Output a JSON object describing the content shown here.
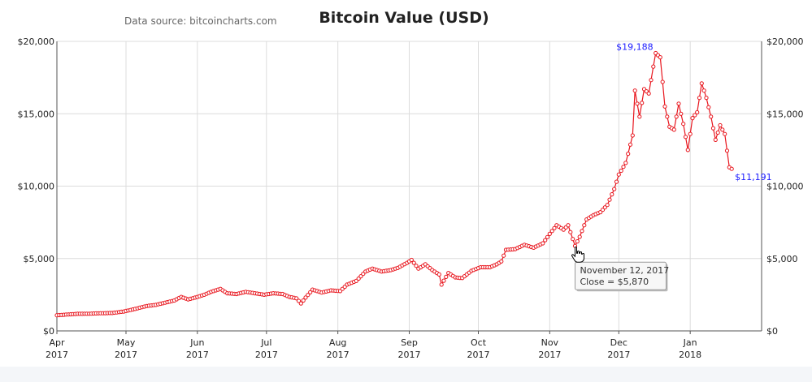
{
  "chart_data": {
    "type": "line",
    "title": "Bitcoin Value (USD)",
    "source_note": "Data source: bitcoincharts.com",
    "xlabel": "",
    "ylabel": "",
    "ylim": [
      0,
      20000
    ],
    "y_ticks": [
      0,
      5000,
      10000,
      15000,
      20000
    ],
    "y_tick_labels": [
      "$0",
      "$5,000",
      "$10,000",
      "$15,000",
      "$20,000"
    ],
    "x_ticks": [
      {
        "date": "2017-04-01",
        "month": "Apr",
        "year": "2017"
      },
      {
        "date": "2017-05-01",
        "month": "May",
        "year": "2017"
      },
      {
        "date": "2017-06-01",
        "month": "Jun",
        "year": "2017"
      },
      {
        "date": "2017-07-01",
        "month": "Jul",
        "year": "2017"
      },
      {
        "date": "2017-08-01",
        "month": "Aug",
        "year": "2017"
      },
      {
        "date": "2017-09-01",
        "month": "Sep",
        "year": "2017"
      },
      {
        "date": "2017-10-01",
        "month": "Oct",
        "year": "2017"
      },
      {
        "date": "2017-11-01",
        "month": "Nov",
        "year": "2017"
      },
      {
        "date": "2017-12-01",
        "month": "Dec",
        "year": "2017"
      },
      {
        "date": "2018-01-01",
        "month": "Jan",
        "year": "2018"
      }
    ],
    "grid": true,
    "line_color": "#e8141c",
    "series": [
      {
        "points": [
          [
            "2017-04-01",
            1080
          ],
          [
            "2017-04-05",
            1130
          ],
          [
            "2017-04-10",
            1180
          ],
          [
            "2017-04-15",
            1190
          ],
          [
            "2017-04-20",
            1220
          ],
          [
            "2017-04-25",
            1240
          ],
          [
            "2017-04-30",
            1340
          ],
          [
            "2017-05-05",
            1520
          ],
          [
            "2017-05-10",
            1720
          ],
          [
            "2017-05-14",
            1800
          ],
          [
            "2017-05-18",
            1950
          ],
          [
            "2017-05-22",
            2100
          ],
          [
            "2017-05-25",
            2350
          ],
          [
            "2017-05-28",
            2180
          ],
          [
            "2017-05-31",
            2300
          ],
          [
            "2017-06-04",
            2500
          ],
          [
            "2017-06-07",
            2700
          ],
          [
            "2017-06-11",
            2900
          ],
          [
            "2017-06-14",
            2600
          ],
          [
            "2017-06-18",
            2550
          ],
          [
            "2017-06-22",
            2700
          ],
          [
            "2017-06-26",
            2600
          ],
          [
            "2017-06-30",
            2500
          ],
          [
            "2017-07-04",
            2600
          ],
          [
            "2017-07-08",
            2550
          ],
          [
            "2017-07-11",
            2350
          ],
          [
            "2017-07-14",
            2250
          ],
          [
            "2017-07-16",
            1900
          ],
          [
            "2017-07-18",
            2300
          ],
          [
            "2017-07-21",
            2850
          ],
          [
            "2017-07-25",
            2650
          ],
          [
            "2017-07-29",
            2800
          ],
          [
            "2017-08-02",
            2750
          ],
          [
            "2017-08-05",
            3200
          ],
          [
            "2017-08-09",
            3450
          ],
          [
            "2017-08-13",
            4100
          ],
          [
            "2017-08-16",
            4300
          ],
          [
            "2017-08-20",
            4100
          ],
          [
            "2017-08-24",
            4200
          ],
          [
            "2017-08-27",
            4350
          ],
          [
            "2017-08-31",
            4700
          ],
          [
            "2017-09-02",
            4900
          ],
          [
            "2017-09-05",
            4300
          ],
          [
            "2017-09-08",
            4600
          ],
          [
            "2017-09-11",
            4200
          ],
          [
            "2017-09-14",
            3900
          ],
          [
            "2017-09-15",
            3200
          ],
          [
            "2017-09-18",
            4000
          ],
          [
            "2017-09-21",
            3700
          ],
          [
            "2017-09-24",
            3650
          ],
          [
            "2017-09-28",
            4150
          ],
          [
            "2017-10-02",
            4400
          ],
          [
            "2017-10-06",
            4400
          ],
          [
            "2017-10-09",
            4600
          ],
          [
            "2017-10-11",
            4800
          ],
          [
            "2017-10-13",
            5600
          ],
          [
            "2017-10-17",
            5650
          ],
          [
            "2017-10-21",
            5950
          ],
          [
            "2017-10-25",
            5750
          ],
          [
            "2017-10-29",
            6050
          ],
          [
            "2017-11-01",
            6700
          ],
          [
            "2017-11-04",
            7300
          ],
          [
            "2017-11-07",
            7000
          ],
          [
            "2017-11-09",
            7300
          ],
          [
            "2017-11-12",
            5870
          ],
          [
            "2017-11-14",
            6500
          ],
          [
            "2017-11-17",
            7700
          ],
          [
            "2017-11-20",
            8000
          ],
          [
            "2017-11-23",
            8200
          ],
          [
            "2017-11-26",
            8700
          ],
          [
            "2017-11-29",
            9800
          ],
          [
            "2017-12-01",
            10800
          ],
          [
            "2017-12-04",
            11600
          ],
          [
            "2017-12-07",
            13500
          ],
          [
            "2017-12-08",
            16600
          ],
          [
            "2017-12-10",
            14800
          ],
          [
            "2017-12-12",
            16700
          ],
          [
            "2017-12-14",
            16400
          ],
          [
            "2017-12-17",
            19188
          ],
          [
            "2017-12-19",
            18900
          ],
          [
            "2017-12-21",
            15500
          ],
          [
            "2017-12-23",
            14100
          ],
          [
            "2017-12-25",
            13900
          ],
          [
            "2017-12-27",
            15700
          ],
          [
            "2017-12-29",
            14300
          ],
          [
            "2017-12-31",
            12500
          ],
          [
            "2018-01-02",
            14700
          ],
          [
            "2018-01-04",
            15100
          ],
          [
            "2018-01-06",
            17100
          ],
          [
            "2018-01-08",
            16100
          ],
          [
            "2018-01-10",
            14800
          ],
          [
            "2018-01-12",
            13200
          ],
          [
            "2018-01-14",
            14200
          ],
          [
            "2018-01-16",
            13600
          ],
          [
            "2018-01-18",
            11300
          ],
          [
            "2018-01-19",
            11191
          ]
        ]
      }
    ],
    "annotations": [
      {
        "date": "2017-12-17",
        "value": 19188,
        "label": "$19,188",
        "side": "left"
      },
      {
        "date": "2018-01-19",
        "value": 11191,
        "label": "$11,191",
        "side": "right"
      }
    ],
    "tooltip": {
      "date": "2017-11-12",
      "value": 5870,
      "line1": "November 12, 2017",
      "line2": "Close = $5,870"
    }
  }
}
